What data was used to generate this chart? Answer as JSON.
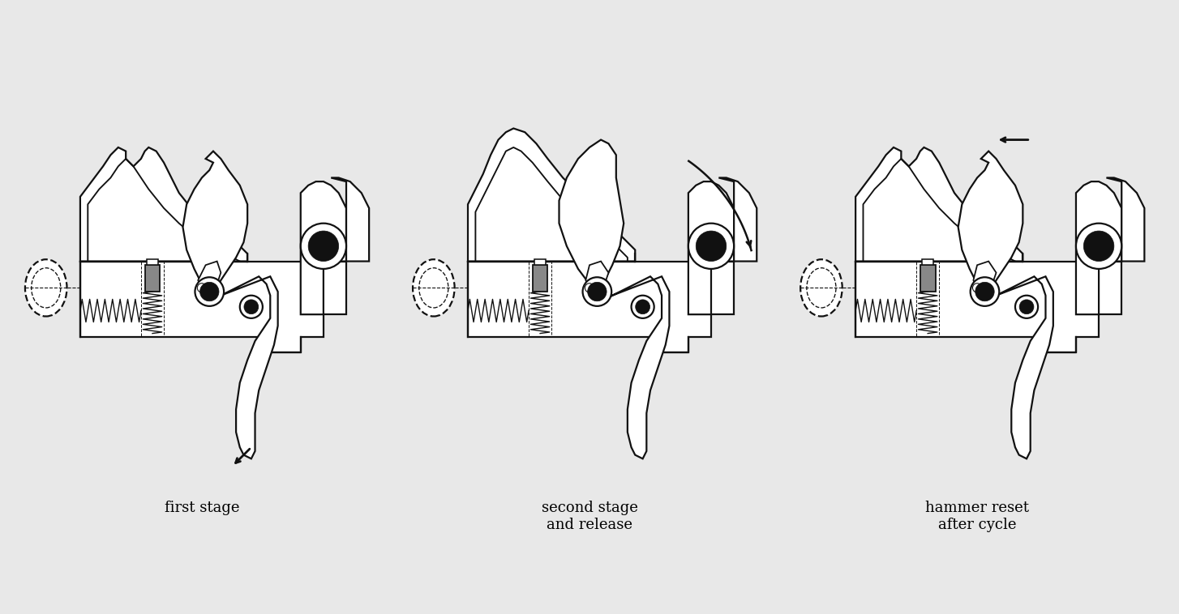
{
  "background_color": "#e8e8e8",
  "line_color": "#111111",
  "lw": 1.6,
  "labels": [
    "first stage",
    "second stage\nand release",
    "hammer reset\nafter cycle"
  ],
  "label_fontsize": 13,
  "gray": "#888888",
  "dark": "#111111",
  "white": "#ffffff"
}
